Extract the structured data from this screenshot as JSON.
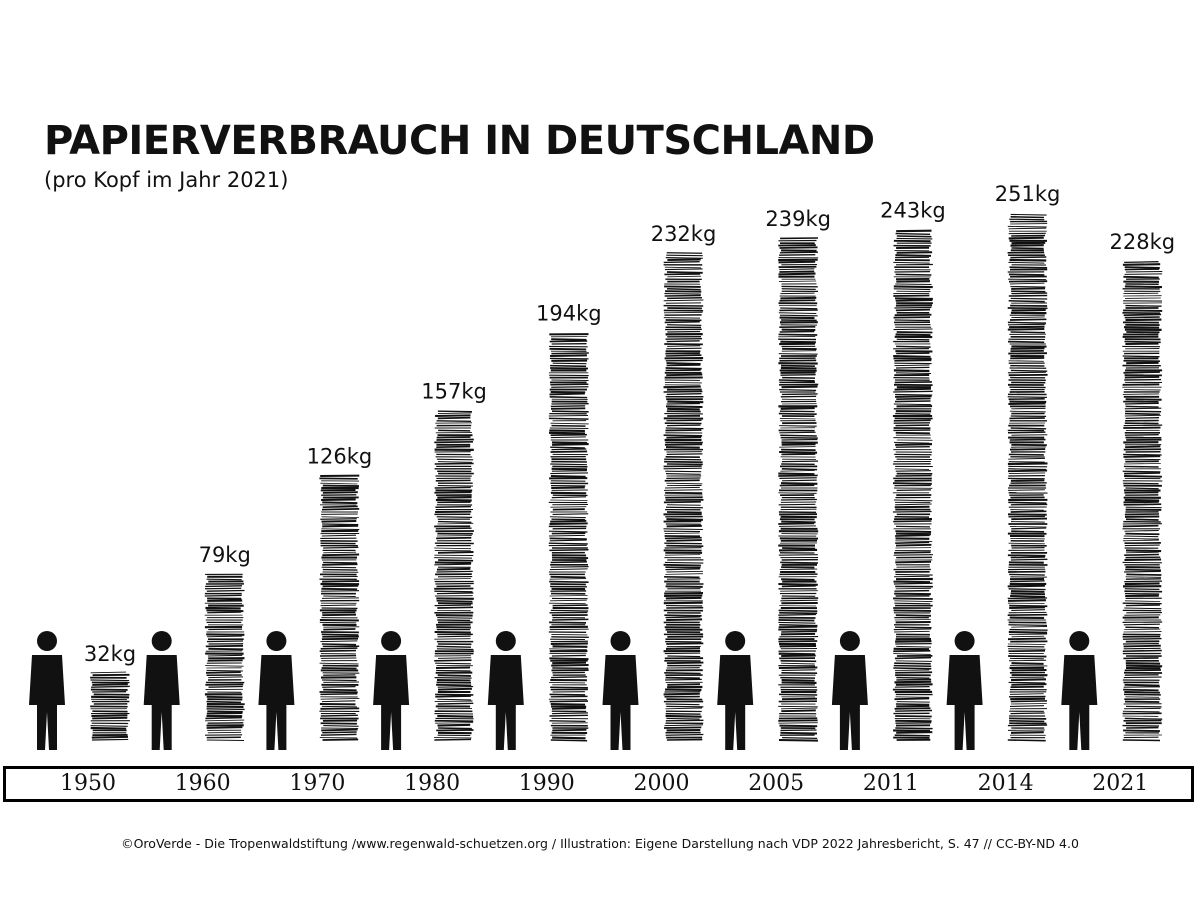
{
  "chart_data": {
    "type": "bar",
    "title": "PAPIERVERBRAUCH IN DEUTSCHLAND",
    "subtitle": "(pro Kopf im Jahr 2021)",
    "unit": "kg",
    "categories": [
      "1950",
      "1960",
      "1970",
      "1980",
      "1990",
      "2000",
      "2005",
      "2011",
      "2014",
      "2021"
    ],
    "values": [
      32,
      79,
      126,
      157,
      194,
      232,
      239,
      243,
      251,
      228
    ],
    "data_labels": [
      "32kg",
      "79kg",
      "126kg",
      "157kg",
      "194kg",
      "232kg",
      "239kg",
      "243kg",
      "251kg",
      "228kg"
    ],
    "xlabel": "",
    "ylabel": "",
    "grid": false,
    "legend": "none",
    "bar_style": "stacked paper sheets",
    "colors": {
      "bars": "#111111",
      "background": "#ffffff"
    }
  },
  "footer": {
    "credit": "©OroVerde - Die Tropenwaldstiftung /www.regenwald-schuetzen.org / Illustration: Eigene Darstellung nach VDP 2022 Jahresbericht, S. 47 // CC-BY-ND 4.0"
  }
}
